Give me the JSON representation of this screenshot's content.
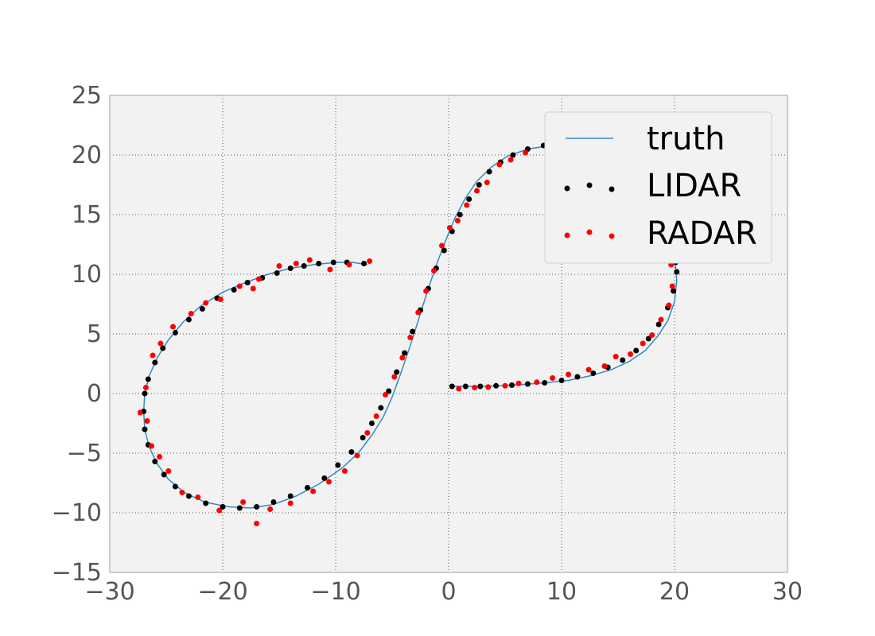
{
  "chart_data": {
    "type": "scatter",
    "title": "",
    "xlabel": "",
    "ylabel": "",
    "xlim": [
      -30,
      30
    ],
    "ylim": [
      -15,
      25
    ],
    "xticks": [
      -30,
      -20,
      -10,
      0,
      10,
      20,
      30
    ],
    "yticks": [
      -15,
      -10,
      -5,
      0,
      5,
      10,
      15,
      20,
      25
    ],
    "xtick_labels": [
      "−30",
      "−20",
      "−10",
      "0",
      "10",
      "20",
      "30"
    ],
    "ytick_labels": [
      "−15",
      "−10",
      "−5",
      "0",
      "5",
      "10",
      "15",
      "20",
      "25"
    ],
    "grid": true,
    "legend_position": "top-right",
    "series": [
      {
        "name": "truth",
        "kind": "line",
        "color": "#348ABD",
        "x": [
          -7.2,
          -8.5,
          -10.0,
          -12.0,
          -14.0,
          -16.0,
          -18.0,
          -20.0,
          -22.0,
          -23.5,
          -24.8,
          -25.8,
          -26.5,
          -26.9,
          -27.0,
          -26.9,
          -26.5,
          -25.8,
          -24.8,
          -23.4,
          -21.6,
          -19.5,
          -17.5,
          -15.5,
          -13.5,
          -11.5,
          -9.5,
          -8.0,
          -6.8,
          -5.8,
          -5.0,
          -4.2,
          -3.4,
          -2.6,
          -1.8,
          -1.0,
          -0.2,
          0.6,
          1.5,
          2.5,
          3.8,
          5.2,
          7.0,
          9.0,
          11.0,
          13.0,
          15.0,
          16.8,
          18.3,
          19.4,
          20.0,
          20.2,
          20.0,
          19.4,
          18.5,
          17.4,
          16.0,
          14.4,
          12.6,
          10.6,
          8.5,
          6.5,
          4.5,
          2.5,
          0.4
        ],
        "y": [
          10.8,
          11.0,
          11.0,
          10.8,
          10.5,
          10.0,
          9.3,
          8.5,
          7.3,
          6.0,
          4.5,
          3.0,
          1.5,
          0.0,
          -1.5,
          -3.0,
          -4.5,
          -5.9,
          -7.2,
          -8.3,
          -9.1,
          -9.5,
          -9.6,
          -9.3,
          -8.6,
          -7.6,
          -6.3,
          -5.0,
          -3.5,
          -2.0,
          -0.3,
          1.8,
          4.0,
          6.4,
          8.8,
          11.0,
          13.0,
          14.8,
          16.4,
          17.8,
          19.0,
          19.9,
          20.5,
          20.8,
          20.8,
          20.3,
          19.4,
          18.0,
          16.2,
          14.0,
          11.5,
          9.5,
          7.7,
          6.1,
          4.8,
          3.6,
          2.7,
          2.0,
          1.5,
          1.1,
          0.9,
          0.75,
          0.65,
          0.6,
          0.6
        ]
      },
      {
        "name": "LIDAR",
        "kind": "scatter",
        "color": "#000000",
        "x": [
          -7.5,
          -9.0,
          -10.2,
          -11.5,
          -12.8,
          -14.0,
          -15.2,
          -16.5,
          -17.8,
          -19.0,
          -20.5,
          -21.8,
          -23.0,
          -24.2,
          -25.3,
          -26.0,
          -26.6,
          -26.9,
          -27.0,
          -26.9,
          -26.6,
          -26.0,
          -25.2,
          -24.2,
          -23.0,
          -21.5,
          -20.0,
          -18.5,
          -17.0,
          -15.5,
          -14.0,
          -12.5,
          -11.0,
          -9.8,
          -8.6,
          -7.6,
          -6.8,
          -6.0,
          -5.3,
          -4.6,
          -3.9,
          -3.2,
          -2.5,
          -1.8,
          -1.1,
          -0.4,
          0.3,
          1.0,
          1.8,
          2.7,
          3.6,
          4.6,
          5.7,
          7.0,
          8.4,
          0.3,
          1.5,
          2.8,
          4.2,
          5.6,
          7.0,
          8.5,
          10.0,
          11.4,
          12.8,
          14.1,
          15.4,
          16.6,
          17.7,
          18.6,
          19.4,
          19.9,
          20.2,
          20.1
        ],
        "y": [
          10.9,
          11.0,
          11.0,
          10.9,
          10.7,
          10.5,
          10.1,
          9.7,
          9.3,
          8.7,
          8.0,
          7.1,
          6.2,
          5.1,
          3.8,
          2.6,
          1.2,
          0.0,
          -1.5,
          -3.0,
          -4.3,
          -5.7,
          -6.8,
          -7.8,
          -8.6,
          -9.2,
          -9.5,
          -9.6,
          -9.5,
          -9.1,
          -8.6,
          -7.9,
          -7.1,
          -6.0,
          -4.9,
          -3.7,
          -2.5,
          -1.2,
          0.2,
          1.8,
          3.4,
          5.2,
          7.0,
          8.8,
          10.5,
          12.0,
          13.6,
          15.0,
          16.3,
          17.5,
          18.6,
          19.4,
          20.0,
          20.5,
          20.8,
          0.6,
          0.6,
          0.6,
          0.65,
          0.7,
          0.8,
          0.9,
          1.1,
          1.4,
          1.7,
          2.2,
          2.8,
          3.6,
          4.6,
          5.8,
          7.2,
          8.6,
          10.2,
          11.0
        ]
      },
      {
        "name": "RADAR",
        "kind": "scatter",
        "color": "#FF0000",
        "x": [
          -7.0,
          -8.8,
          -10.5,
          -12.3,
          -13.5,
          -15.0,
          -16.8,
          -17.3,
          -18.5,
          -20.2,
          -21.5,
          -22.8,
          -24.4,
          -25.5,
          -26.2,
          -26.8,
          -27.3,
          -26.7,
          -26.3,
          -25.6,
          -24.8,
          -23.6,
          -22.2,
          -20.3,
          -18.2,
          -17.0,
          -15.8,
          -14.0,
          -12.0,
          -10.6,
          -9.2,
          -8.1,
          -7.2,
          -6.4,
          -5.6,
          -4.8,
          -4.1,
          -3.4,
          -2.7,
          -2.0,
          -1.3,
          -0.6,
          0.1,
          0.8,
          1.6,
          2.5,
          3.4,
          4.5,
          5.5,
          6.8,
          0.9,
          2.3,
          3.5,
          5.0,
          6.2,
          7.8,
          9.2,
          10.6,
          12.4,
          13.8,
          14.8,
          16.1,
          17.2,
          18.0,
          18.8,
          19.5,
          19.8,
          19.7
        ],
        "y": [
          11.1,
          10.8,
          10.4,
          11.2,
          10.9,
          10.7,
          9.6,
          8.8,
          9.0,
          7.9,
          7.6,
          6.7,
          5.6,
          4.2,
          3.2,
          0.5,
          -1.6,
          -2.3,
          -4.4,
          -5.3,
          -6.5,
          -8.3,
          -8.7,
          -9.8,
          -9.1,
          -10.9,
          -9.7,
          -9.2,
          -8.2,
          -7.4,
          -6.5,
          -5.2,
          -3.3,
          -1.9,
          -0.1,
          1.4,
          3.0,
          4.7,
          6.8,
          8.6,
          10.3,
          12.4,
          13.9,
          14.5,
          15.8,
          17.0,
          17.7,
          19.2,
          19.6,
          20.2,
          0.4,
          0.5,
          0.55,
          0.65,
          0.85,
          0.95,
          1.3,
          1.6,
          2.0,
          2.3,
          3.1,
          3.3,
          4.2,
          4.9,
          6.2,
          7.4,
          9.0,
          10.8
        ]
      }
    ]
  }
}
